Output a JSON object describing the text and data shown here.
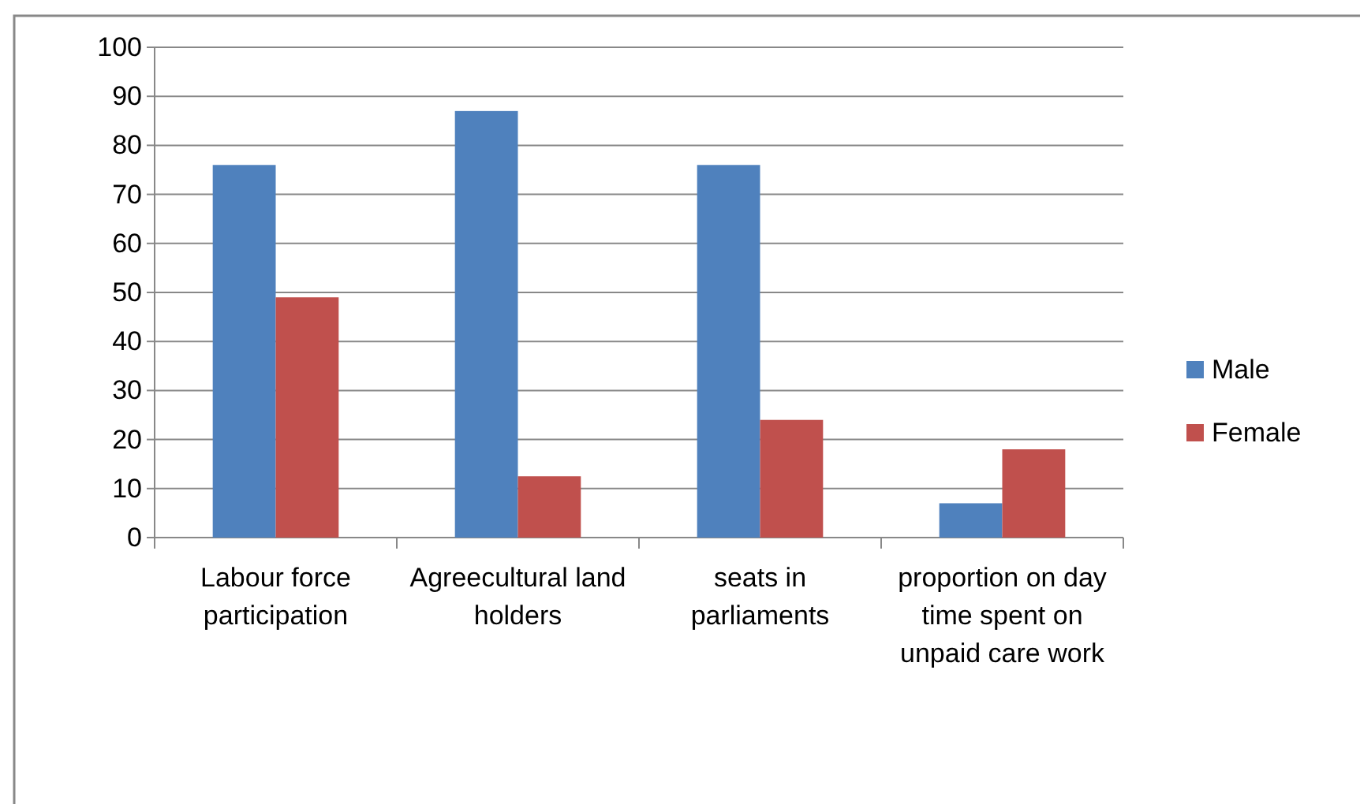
{
  "chart_data": {
    "type": "bar",
    "categories": [
      "Labour force participation",
      "Agreecultural land holders",
      "seats in parliaments",
      "proportion on day time spent on unpaid care work"
    ],
    "series": [
      {
        "name": "Male",
        "color": "#4f81bd",
        "values": [
          76,
          87,
          76,
          7
        ]
      },
      {
        "name": "Female",
        "color": "#c0504d",
        "values": [
          49,
          12.5,
          24,
          18
        ]
      }
    ],
    "ylim": [
      0,
      100
    ],
    "yticks": [
      0,
      10,
      20,
      30,
      40,
      50,
      60,
      70,
      80,
      90,
      100
    ],
    "grid": "y",
    "legend": "right"
  }
}
